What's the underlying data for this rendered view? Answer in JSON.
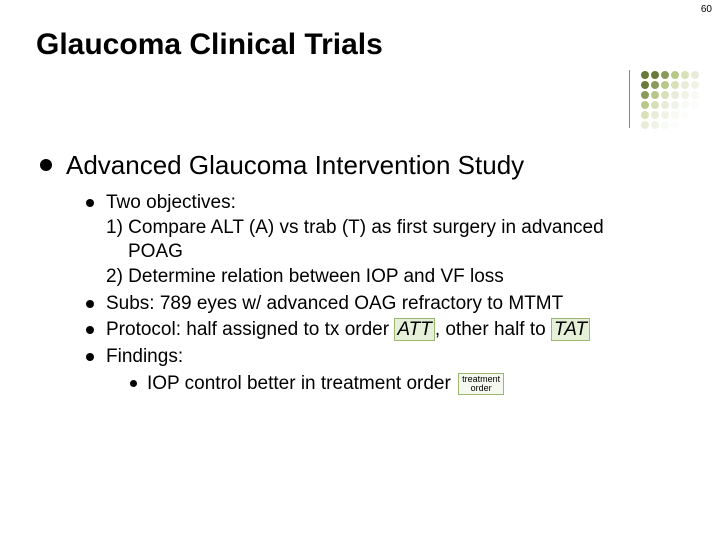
{
  "slide_number": "60",
  "title": "Glaucoma Clinical Trials",
  "heading": "Advanced Glaucoma Intervention Study",
  "bullets": {
    "b1_lead": "Two objectives:",
    "b1_line1a": "1) Compare ALT (A) vs trab (T) as first surgery in advanced",
    "b1_line1b": "POAG",
    "b1_line2": "2) Determine relation between IOP and VF loss",
    "b2": "Subs: 789 eyes w/ advanced OAG refractory to MTMT",
    "b3_pre": "Protocol: half assigned to tx order ",
    "b3_hl1": "ATT",
    "b3_mid": ", other half to ",
    "b3_hl2": "TAT",
    "b4": "Findings:",
    "b4_sub_pre": "IOP control better in treatment order",
    "box_line1": "treatment",
    "box_line2": "order"
  },
  "dotgrid": {
    "colors": [
      [
        "#6a7a3a",
        "#6a7a3a",
        "#8a9a5a",
        "#b8c888",
        "#d8e0b8",
        "#e8ecd8"
      ],
      [
        "#6a7a3a",
        "#8a9a5a",
        "#b8c888",
        "#d8e0b8",
        "#e8ecd8",
        "#f0f4e8"
      ],
      [
        "#8a9a5a",
        "#b8c888",
        "#d8e0b8",
        "#e8ecd8",
        "#f0f4e8",
        "#f8faf4"
      ],
      [
        "#b8c888",
        "#d8e0b8",
        "#e8ecd8",
        "#f0f4e8",
        "#f8faf4",
        "#fcfcfa"
      ],
      [
        "#d8e0b8",
        "#e8ecd8",
        "#f0f4e8",
        "#f8faf4",
        "#fcfcfa",
        "#ffffff"
      ],
      [
        "#e8ecd8",
        "#f0f4e8",
        "#f8faf4",
        "#fcfcfa",
        "#ffffff",
        "#ffffff"
      ]
    ]
  }
}
